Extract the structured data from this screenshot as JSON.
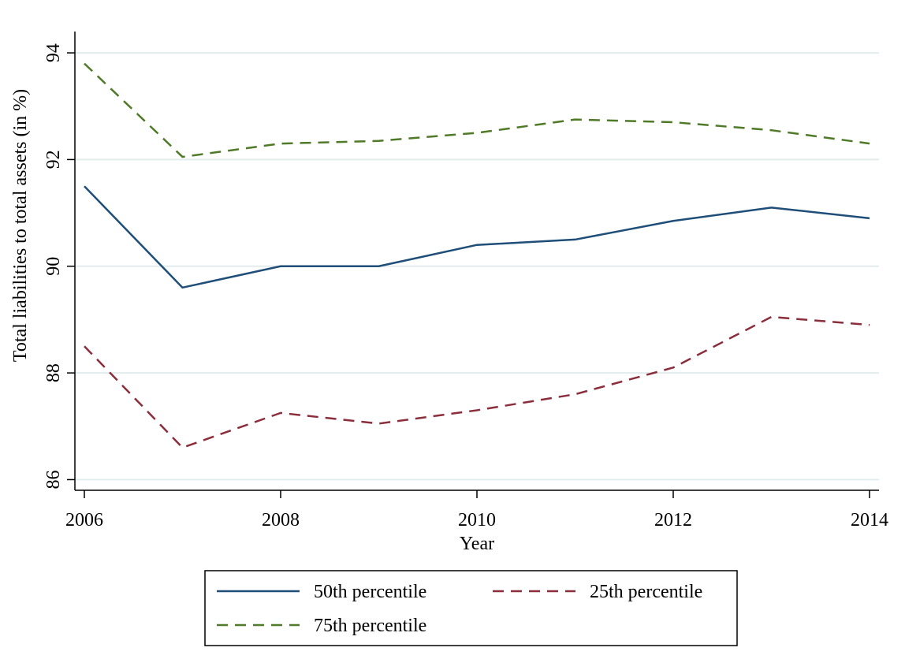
{
  "chart_data": {
    "type": "line",
    "title": "",
    "xlabel": "Year",
    "ylabel": "Total liabilities to total assets (in %)",
    "xlim": [
      2006,
      2014
    ],
    "ylim": [
      85.8,
      94.4
    ],
    "x_ticks": [
      "2006",
      "2008",
      "2010",
      "2012",
      "2014"
    ],
    "y_ticks": [
      "86",
      "88",
      "90",
      "92",
      "94"
    ],
    "grid": true,
    "legend_position": "bottom",
    "x": [
      2006,
      2007,
      2008,
      2009,
      2010,
      2011,
      2012,
      2013,
      2014
    ],
    "series": [
      {
        "name": "50th percentile",
        "color": "#1f4e79",
        "dash": "solid",
        "values": [
          91.5,
          89.6,
          90.0,
          90.0,
          90.4,
          90.5,
          90.85,
          91.1,
          90.9
        ]
      },
      {
        "name": "25th percentile",
        "color": "#8b2e3c",
        "dash": "dashed",
        "values": [
          88.5,
          86.6,
          87.25,
          87.05,
          87.3,
          87.6,
          88.1,
          89.05,
          88.9
        ]
      },
      {
        "name": "75th percentile",
        "color": "#4f7a28",
        "dash": "dashed",
        "values": [
          93.8,
          92.05,
          92.3,
          92.35,
          92.5,
          92.75,
          92.7,
          92.55,
          92.3
        ]
      }
    ],
    "legend_order": [
      0,
      1,
      2
    ]
  }
}
